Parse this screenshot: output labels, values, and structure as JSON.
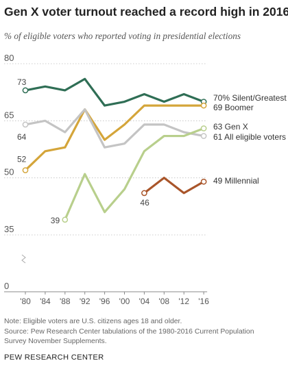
{
  "title": "Gen X voter turnout reached a record high in 2016",
  "subtitle": "% of eligible voters who reported voting in presidential elections",
  "note": "Note: Eligible voters are U.S. citizens ages 18 and older.",
  "source_line1": "Source: Pew Research Center tabulations of the 1980-2016 Current Population",
  "source_line2": "Survey November Supplements.",
  "brand": "PEW RESEARCH CENTER",
  "chart_data": {
    "type": "line",
    "x": [
      1980,
      1984,
      1988,
      1992,
      1996,
      2000,
      2004,
      2008,
      2012,
      2016
    ],
    "x_tick_labels": [
      "'80",
      "'84",
      "'88",
      "'92",
      "'96",
      "'00",
      "'04",
      "'08",
      "'12",
      "'16"
    ],
    "y_ticks": [
      0,
      35,
      50,
      65,
      80
    ],
    "y_tick_labels": [
      "0",
      "35",
      "50",
      "65",
      "80"
    ],
    "ylim": [
      0,
      80
    ],
    "axis_break": true,
    "grid": false,
    "xlabel": "",
    "ylabel": "",
    "series": [
      {
        "name": "Silent/Greatest",
        "color": "#2f6e55",
        "values": [
          73,
          74,
          73,
          76,
          69,
          70,
          72,
          70,
          72,
          70
        ],
        "start_label": "73",
        "end_label": "70% Silent/Greatest"
      },
      {
        "name": "Boomer",
        "color": "#d4a53a",
        "values": [
          52,
          57,
          58,
          68,
          60,
          64,
          69,
          69,
          69,
          69
        ],
        "start_label": "52",
        "end_label": "69 Boomer"
      },
      {
        "name": "All eligible voters",
        "color": "#c4c4c4",
        "values": [
          64,
          65,
          62,
          68,
          58,
          59,
          64,
          64,
          62,
          61
        ],
        "start_label": "64",
        "end_label": "61 All eligible voters"
      },
      {
        "name": "Gen X",
        "color": "#b8cf8c",
        "values": [
          null,
          null,
          39,
          51,
          41,
          47,
          57,
          61,
          61,
          63
        ],
        "start_label": "39",
        "end_label": "63 Gen X"
      },
      {
        "name": "Millennial",
        "color": "#a9552a",
        "values": [
          null,
          null,
          null,
          null,
          null,
          null,
          46,
          50,
          46,
          49
        ],
        "start_label": "46",
        "end_label": "49 Millennial"
      }
    ]
  }
}
